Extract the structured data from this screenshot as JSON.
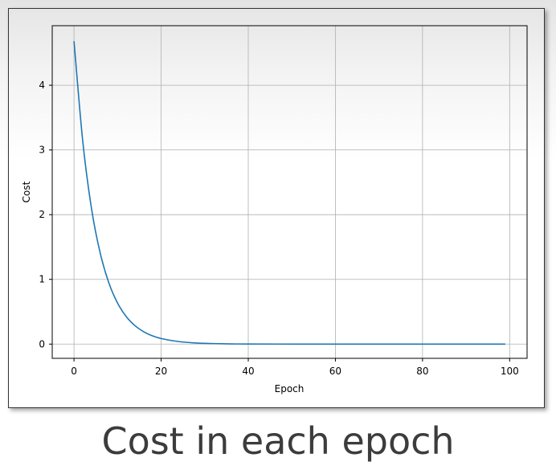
{
  "slide": {
    "title": "Cost in each epoch"
  },
  "chart_data": {
    "type": "line",
    "title": "",
    "xlabel": "Epoch",
    "ylabel": "Cost",
    "xlim": [
      -5,
      104
    ],
    "ylim": [
      -0.22,
      4.92
    ],
    "xticks": [
      0,
      20,
      40,
      60,
      80,
      100
    ],
    "yticks": [
      0,
      1,
      2,
      3,
      4
    ],
    "grid": true,
    "line_color": "#1f77b4",
    "series": [
      {
        "x": [
          0,
          2,
          4,
          6,
          8,
          10,
          12,
          14,
          16,
          18,
          20,
          24,
          28,
          32,
          36,
          40,
          50,
          60,
          70,
          80,
          90,
          99
        ],
        "y": [
          4.68,
          3.14,
          2.1,
          1.41,
          0.945,
          0.633,
          0.424,
          0.285,
          0.191,
          0.128,
          0.086,
          0.039,
          0.017,
          0.008,
          0.003,
          0.001,
          0,
          0,
          0,
          0,
          0,
          0
        ]
      }
    ]
  }
}
